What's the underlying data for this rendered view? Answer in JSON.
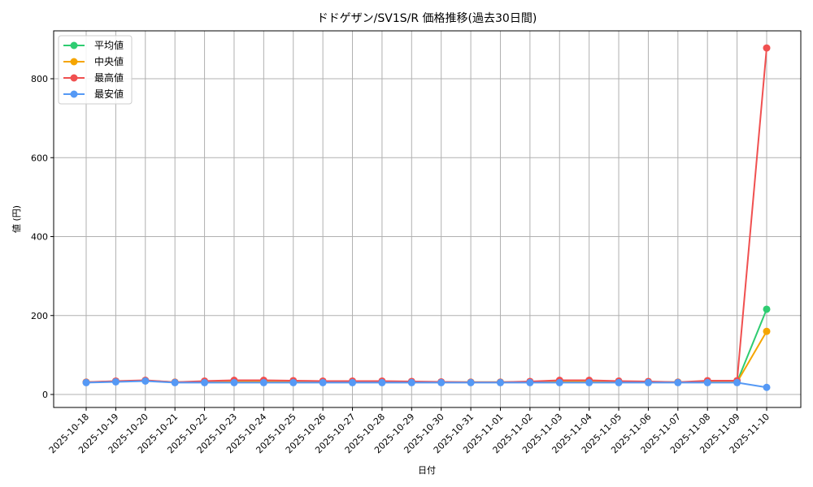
{
  "chart_data": {
    "type": "line",
    "title": "ドドゲザン/SV1S/R 価格推移(過去30日間)",
    "xlabel": "日付",
    "ylabel": "値 (円)",
    "ylim": [
      -30,
      920
    ],
    "yticks": [
      0,
      200,
      400,
      600,
      800
    ],
    "grid": true,
    "legend_position": "upper left",
    "x": [
      "2025-10-18",
      "2025-10-19",
      "2025-10-20",
      "2025-10-21",
      "2025-10-22",
      "2025-10-23",
      "2025-10-24",
      "2025-10-25",
      "2025-10-26",
      "2025-10-27",
      "2025-10-28",
      "2025-10-29",
      "2025-10-30",
      "2025-10-31",
      "2025-11-01",
      "2025-11-02",
      "2025-11-03",
      "2025-11-04",
      "2025-11-05",
      "2025-11-06",
      "2025-11-07",
      "2025-11-08",
      "2025-11-09",
      "2025-11-10"
    ],
    "series": [
      {
        "name": "平均値",
        "color": "#2ecc71",
        "values": [
          31,
          33,
          35,
          31,
          32,
          33,
          33,
          33,
          32,
          32,
          32,
          32,
          31,
          31,
          31,
          32,
          33,
          33,
          32,
          32,
          31,
          32,
          32,
          216
        ]
      },
      {
        "name": "中央値",
        "color": "#f5a500",
        "values": [
          31,
          33,
          35,
          31,
          32,
          32,
          32,
          32,
          32,
          32,
          32,
          31,
          31,
          31,
          31,
          31,
          32,
          32,
          32,
          31,
          31,
          31,
          31,
          160
        ]
      },
      {
        "name": "最高値",
        "color": "#f05050",
        "values": [
          31,
          34,
          36,
          31,
          34,
          36,
          36,
          35,
          34,
          34,
          34,
          33,
          32,
          31,
          31,
          33,
          36,
          36,
          34,
          33,
          31,
          35,
          35,
          878
        ]
      },
      {
        "name": "最安値",
        "color": "#5599f5",
        "values": [
          30,
          32,
          34,
          30,
          30,
          30,
          30,
          30,
          30,
          30,
          30,
          30,
          30,
          30,
          30,
          30,
          30,
          30,
          30,
          30,
          30,
          30,
          30,
          18
        ]
      }
    ]
  }
}
